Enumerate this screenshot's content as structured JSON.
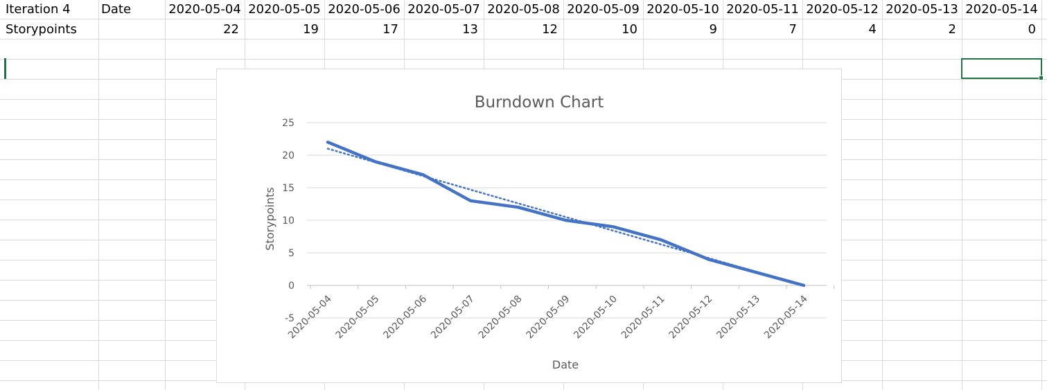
{
  "sheet": {
    "row1": {
      "a": "Iteration 4",
      "b": "Date",
      "dates": [
        "2020-05-04",
        "2020-05-05",
        "2020-05-06",
        "2020-05-07",
        "2020-05-08",
        "2020-05-09",
        "2020-05-10",
        "2020-05-11",
        "2020-05-12",
        "2020-05-13",
        "2020-05-14"
      ]
    },
    "row2": {
      "a": "Storypoints",
      "values": [
        "22",
        "19",
        "17",
        "13",
        "12",
        "10",
        "9",
        "7",
        "4",
        "2",
        "0"
      ]
    }
  },
  "colors": {
    "series": "#4472c4",
    "selection": "#217346",
    "gridline": "#d9d9d9",
    "axis_text": "#595959"
  },
  "chart_data": {
    "type": "line",
    "title": "Burndown Chart",
    "xlabel": "Date",
    "ylabel": "Storypoints",
    "categories": [
      "2020-05-04",
      "2020-05-05",
      "2020-05-06",
      "2020-05-07",
      "2020-05-08",
      "2020-05-09",
      "2020-05-10",
      "2020-05-11",
      "2020-05-12",
      "2020-05-13",
      "2020-05-14"
    ],
    "series": [
      {
        "values": [
          22,
          19,
          17,
          13,
          12,
          10,
          9,
          7,
          4,
          2,
          0
        ],
        "style": "solid"
      }
    ],
    "trendline": {
      "type": "linear",
      "style": "dotted",
      "y_start": 21,
      "y_end": 0
    },
    "yticks": [
      25,
      20,
      15,
      10,
      5,
      0,
      -5
    ],
    "ylim": [
      -5,
      25
    ],
    "grid": true,
    "legend": "none"
  }
}
